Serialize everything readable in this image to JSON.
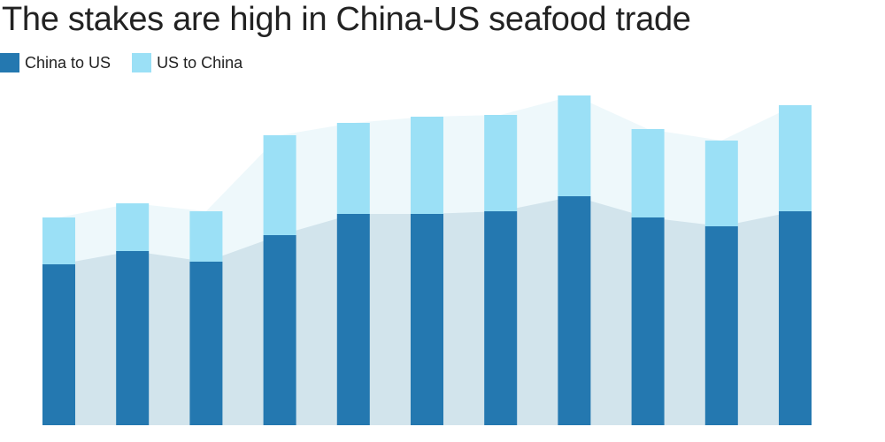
{
  "chart_data": {
    "type": "bar",
    "stacked": true,
    "title": "The stakes are high in China-US seafood trade",
    "categories": [
      "",
      "",
      "",
      "",
      "",
      "",
      "",
      "",
      "",
      "",
      ""
    ],
    "series": [
      {
        "name": "China to US",
        "color": "#2478b0",
        "area_color": "#d2e4ec",
        "values": [
          182,
          197,
          185,
          215,
          239,
          239,
          242,
          259,
          235,
          225,
          242
        ]
      },
      {
        "name": "US to China",
        "color": "#9be0f6",
        "area_color": "#eef8fb",
        "values": [
          53,
          54,
          57,
          113,
          103,
          110,
          109,
          114,
          100,
          97,
          120
        ]
      }
    ],
    "ylim": [
      0,
      380
    ],
    "grid": false,
    "legend_position": "top-left",
    "axis_labels_shown": false
  }
}
